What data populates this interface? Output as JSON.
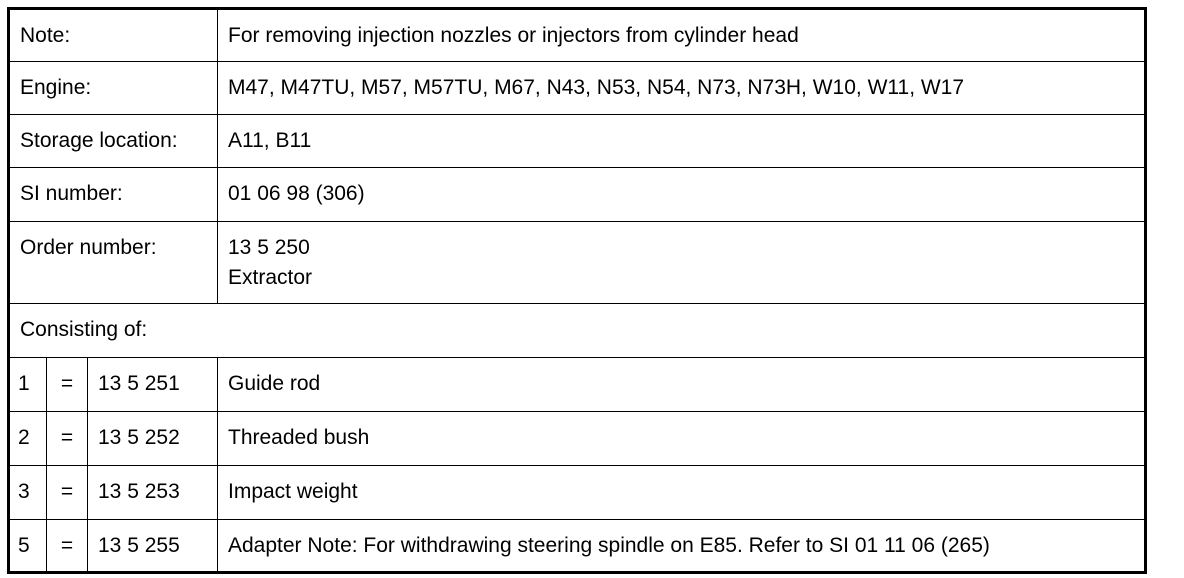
{
  "table": {
    "rows": [
      {
        "label": "Note:",
        "value": [
          "For removing injection nozzles or injectors from cylinder head"
        ]
      },
      {
        "label": "Engine:",
        "value": [
          "M47, M47TU, M57, M57TU, M67, N43, N53, N54, N73, N73H, W10, W11, W17"
        ]
      },
      {
        "label": "Storage location:",
        "value": [
          "A11, B11"
        ]
      },
      {
        "label": "SI number:",
        "value": [
          "01 06 98 (306)"
        ]
      },
      {
        "label": "Order number:",
        "value": [
          "13 5 250",
          "Extractor"
        ]
      }
    ],
    "consisting_of": "Consisting of:",
    "items": [
      [
        "1",
        "=",
        "13 5 251",
        "Guide rod"
      ],
      [
        "2",
        "=",
        "13 5 252",
        "Threaded bush"
      ],
      [
        "3",
        "=",
        "13 5 253",
        "Impact weight"
      ],
      [
        "5",
        "=",
        "13 5 255",
        "Adapter Note: For withdrawing steering spindle on E85. Refer to SI 01 11 06 (265)"
      ]
    ]
  }
}
